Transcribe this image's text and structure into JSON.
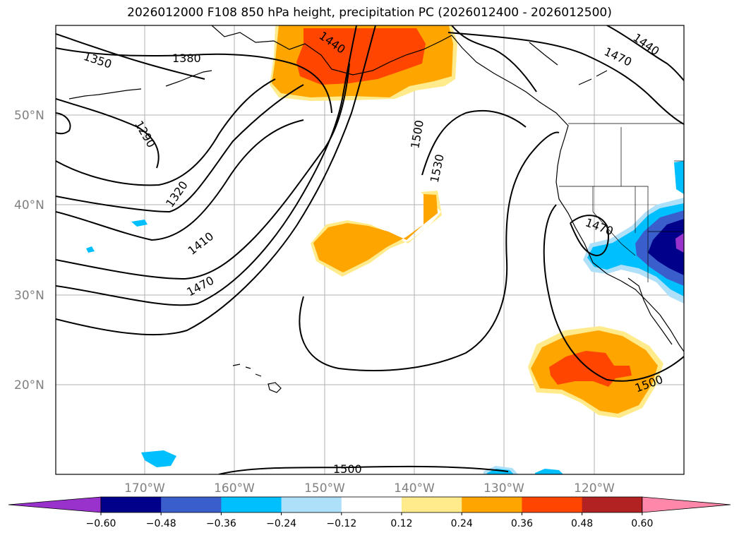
{
  "title": "2026012000 F108 850 hPa height, precipitation PC (2026012400 - 2026012500)",
  "map": {
    "lat_labels": [
      "50°N",
      "40°N",
      "30°N",
      "20°N"
    ],
    "lon_labels": [
      "170°W",
      "160°W",
      "150°W",
      "140°W",
      "130°W",
      "120°W"
    ],
    "contour_labels": [
      "1350",
      "1380",
      "1440",
      "1470",
      "1440",
      "1290",
      "1500",
      "1320",
      "1530",
      "1410",
      "1470",
      "1470",
      "1500",
      "1500"
    ],
    "colors": {
      "c_neg060": "#9932cc",
      "c_neg048": "#00008b",
      "c_neg036": "#3a5fcd",
      "c_neg024": "#00bfff",
      "c_neg012": "#afe0fa",
      "c_pos012": "#ffeb8b",
      "c_pos024": "#ffa500",
      "c_pos036": "#ff4500",
      "c_pos048": "#b22222",
      "c_pos060": "#ff88aa"
    }
  },
  "colorbar": {
    "ticks": [
      "−0.60",
      "−0.48",
      "−0.36",
      "−0.24",
      "−0.12",
      "0.12",
      "0.24",
      "0.36",
      "0.48",
      "0.60"
    ],
    "colors": [
      "#9932cc",
      "#00008b",
      "#3a5fcd",
      "#00bfff",
      "#afe0fa",
      "#ffffff",
      "#ffeb8b",
      "#ffa500",
      "#ff4500",
      "#b22222",
      "#ff88aa"
    ]
  }
}
